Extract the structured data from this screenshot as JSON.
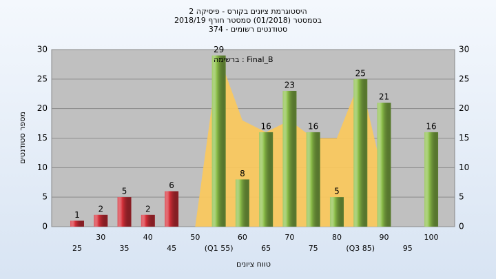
{
  "chart_data": {
    "type": "bar",
    "title": "היסטוגרמת ציונים בקורס - פיסיקה 2",
    "subtitle": "בסמסטר  (01/2018)  סמסטר חורף 2018/19",
    "subtitle2": "סטודנטים רשומים - 374",
    "annotation": "ברשימה : Final_B",
    "x_label": "טווח ציונים",
    "y_label": "מספר סטודנטים",
    "categories": [
      "25",
      "30",
      "35",
      "40",
      "45",
      "50",
      "(Q1 55)",
      "60",
      "65",
      "70",
      "75",
      "80",
      "(Q3 85)",
      "90",
      "95",
      "100"
    ],
    "values": [
      1,
      2,
      5,
      2,
      6,
      null,
      29,
      8,
      16,
      23,
      16,
      5,
      25,
      21,
      null,
      16
    ],
    "colors": [
      "#d8303a",
      "#d8303a",
      "#d8303a",
      "#d8303a",
      "#d8303a",
      "#d8303a",
      "#8dc04a",
      "#8dc04a",
      "#8dc04a",
      "#8dc04a",
      "#8dc04a",
      "#8dc04a",
      "#8dc04a",
      "#8dc04a",
      "#8dc04a",
      "#8dc04a"
    ],
    "area_values": [
      null,
      null,
      null,
      null,
      null,
      0,
      29,
      18,
      16,
      18,
      15,
      15,
      25,
      8,
      null,
      null
    ],
    "area_color": "#fcc95a",
    "ylim": [
      0,
      30
    ],
    "yticks": [
      0,
      5,
      10,
      15,
      20,
      25,
      30
    ],
    "grid": true
  }
}
